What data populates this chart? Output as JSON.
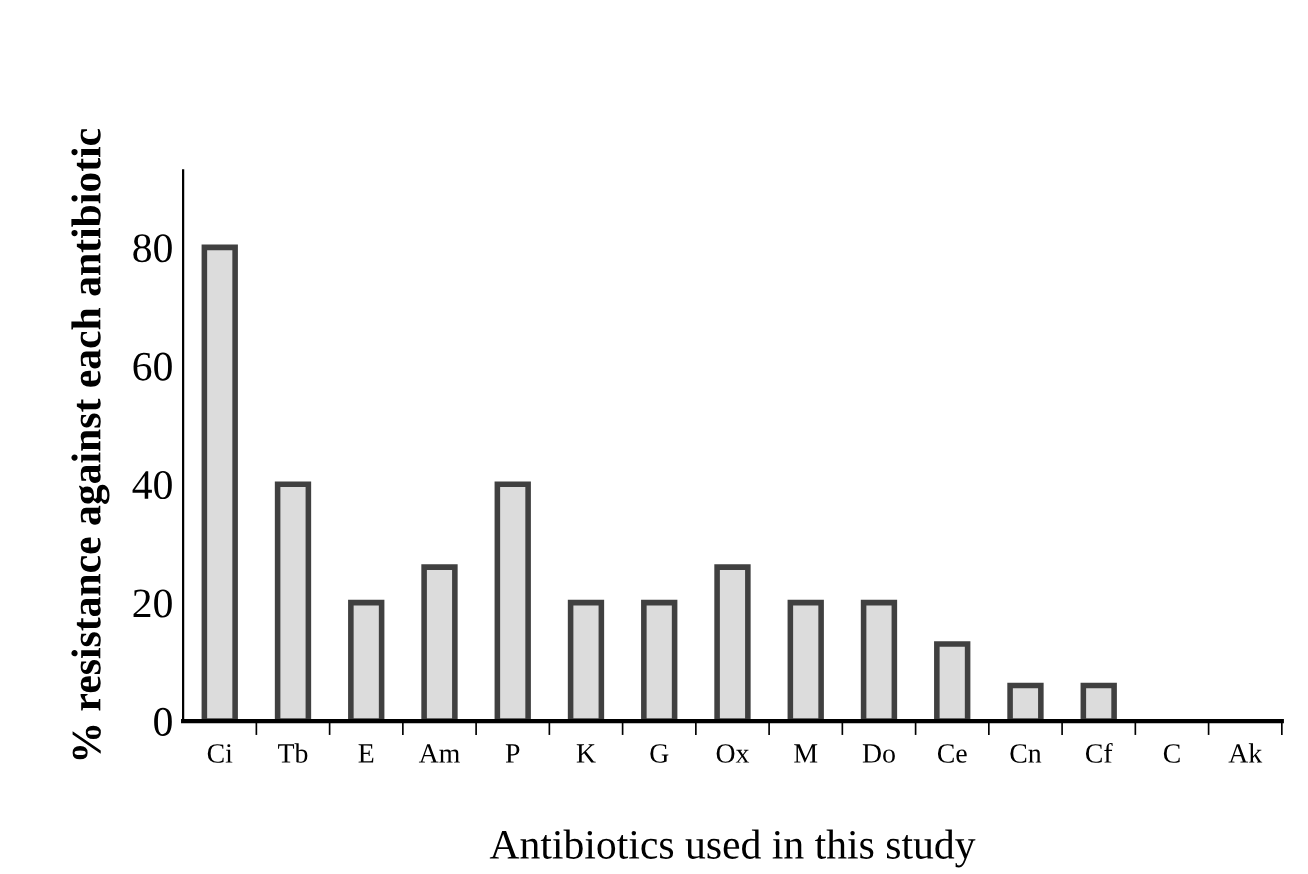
{
  "chart_data": {
    "type": "bar",
    "xlabel": "Antibiotics used in this study",
    "ylabel": "% resistance against each antibiotic",
    "categories": [
      "Ci",
      "Tb",
      "E",
      "Am",
      "P",
      "K",
      "G",
      "Ox",
      "M",
      "Do",
      "Ce",
      "Cn",
      "Cf",
      "C",
      "Ak"
    ],
    "values": [
      80,
      40,
      20,
      26,
      40,
      20,
      20,
      26,
      20,
      20,
      13,
      6,
      6,
      0,
      0
    ],
    "color": "#dcdcdc",
    "ylim": [
      0,
      93
    ],
    "yticks": [
      0,
      20,
      40,
      60,
      80
    ],
    "grid": false
  }
}
